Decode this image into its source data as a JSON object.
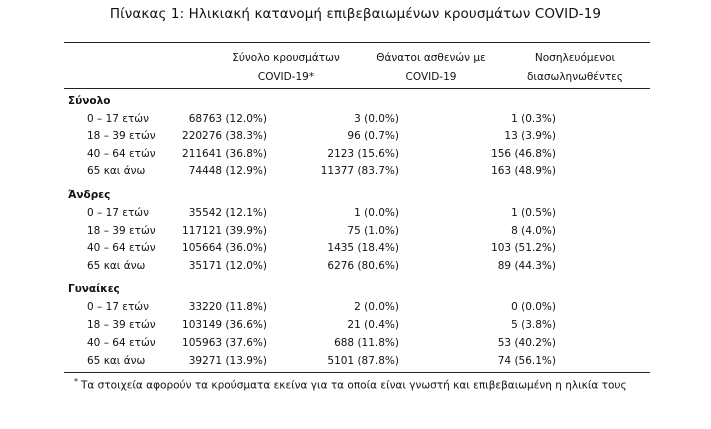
{
  "title": "Πίνακας 1: Ηλικιακή κατανομή επιβεβαιωμένων κρουσμάτων COVID-19",
  "headers": {
    "col1": [
      "Σύνολο κρουσμάτων",
      "COVID-19*"
    ],
    "col2": [
      "Θάνατοι ασθενών με",
      "COVID-19"
    ],
    "col3": [
      "Νοσηλευόμενοι",
      "διασωληνωθέντες"
    ]
  },
  "groups": [
    {
      "name": "Σύνολο",
      "rows": [
        {
          "age": "0 – 17 ετών",
          "cases": "68763 (12.0%)",
          "deaths": "3 (0.0%)",
          "intubated": "1 (0.3%)"
        },
        {
          "age": "18 – 39 ετών",
          "cases": "220276 (38.3%)",
          "deaths": "96 (0.7%)",
          "intubated": "13 (3.9%)"
        },
        {
          "age": "40 – 64 ετών",
          "cases": "211641 (36.8%)",
          "deaths": "2123 (15.6%)",
          "intubated": "156 (46.8%)"
        },
        {
          "age": "65 και άνω",
          "cases": "74448 (12.9%)",
          "deaths": "11377 (83.7%)",
          "intubated": "163 (48.9%)"
        }
      ]
    },
    {
      "name": "Άνδρες",
      "rows": [
        {
          "age": "0 – 17 ετών",
          "cases": "35542 (12.1%)",
          "deaths": "1 (0.0%)",
          "intubated": "1 (0.5%)"
        },
        {
          "age": "18 – 39 ετών",
          "cases": "117121 (39.9%)",
          "deaths": "75 (1.0%)",
          "intubated": "8 (4.0%)"
        },
        {
          "age": "40 – 64 ετών",
          "cases": "105664 (36.0%)",
          "deaths": "1435 (18.4%)",
          "intubated": "103 (51.2%)"
        },
        {
          "age": "65 και άνω",
          "cases": "35171 (12.0%)",
          "deaths": "6276 (80.6%)",
          "intubated": "89 (44.3%)"
        }
      ]
    },
    {
      "name": "Γυναίκες",
      "rows": [
        {
          "age": "0 – 17 ετών",
          "cases": "33220 (11.8%)",
          "deaths": "2 (0.0%)",
          "intubated": "0 (0.0%)"
        },
        {
          "age": "18 – 39 ετών",
          "cases": "103149 (36.6%)",
          "deaths": "21 (0.4%)",
          "intubated": "5 (3.8%)"
        },
        {
          "age": "40 – 64 ετών",
          "cases": "105963 (37.6%)",
          "deaths": "688 (11.8%)",
          "intubated": "53 (40.2%)"
        },
        {
          "age": "65 και άνω",
          "cases": "39271 (13.9%)",
          "deaths": "5101 (87.8%)",
          "intubated": "74 (56.1%)"
        }
      ]
    }
  ],
  "footnote": {
    "marker": "*",
    "text": "Τα στοιχεία αφορούν τα κρούσματα εκείνα για τα οποία είναι γνωστή και επιβεβαιωμένη η ηλικία τους"
  }
}
